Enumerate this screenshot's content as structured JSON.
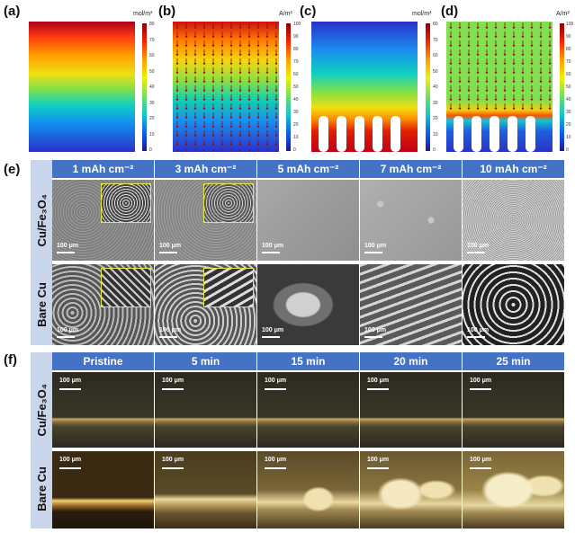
{
  "panels": {
    "a": {
      "label": "(a)",
      "unit": "mol/m³",
      "ticks": [
        "80",
        "70",
        "60",
        "50",
        "40",
        "30",
        "20",
        "10",
        "0"
      ]
    },
    "b": {
      "label": "(b)",
      "unit": "A/m²",
      "ticks": [
        "100",
        "90",
        "80",
        "70",
        "60",
        "50",
        "40",
        "30",
        "20",
        "10",
        "0"
      ]
    },
    "c": {
      "label": "(c)",
      "unit": "mol/m³",
      "ticks": [
        "80",
        "70",
        "60",
        "50",
        "40",
        "30",
        "20",
        "10",
        "0"
      ]
    },
    "d": {
      "label": "(d)",
      "unit": "A/m²",
      "ticks": [
        "100",
        "90",
        "80",
        "70",
        "60",
        "50",
        "40",
        "30",
        "20",
        "10",
        "0"
      ]
    },
    "e": {
      "label": "(e)"
    },
    "f": {
      "label": "(f)"
    }
  },
  "sem_panel": {
    "headers": [
      "1 mAh cm⁻²",
      "3 mAh cm⁻²",
      "5 mAh cm⁻²",
      "7 mAh cm⁻²",
      "10 mAh cm⁻²"
    ],
    "rows": [
      "Cu/Fe₃O₄",
      "Bare Cu"
    ],
    "scale_label": "100 μm"
  },
  "optical_panel": {
    "headers": [
      "Pristine",
      "5 min",
      "15 min",
      "20 min",
      "25 min"
    ],
    "rows": [
      "Cu/Fe₃O₄",
      "Bare Cu"
    ],
    "scale_label": "100 μm"
  },
  "colors": {
    "header_bg": "#4472c4",
    "sidebar_bg": "#c9d5ea",
    "inset_border": "#e8e840"
  }
}
